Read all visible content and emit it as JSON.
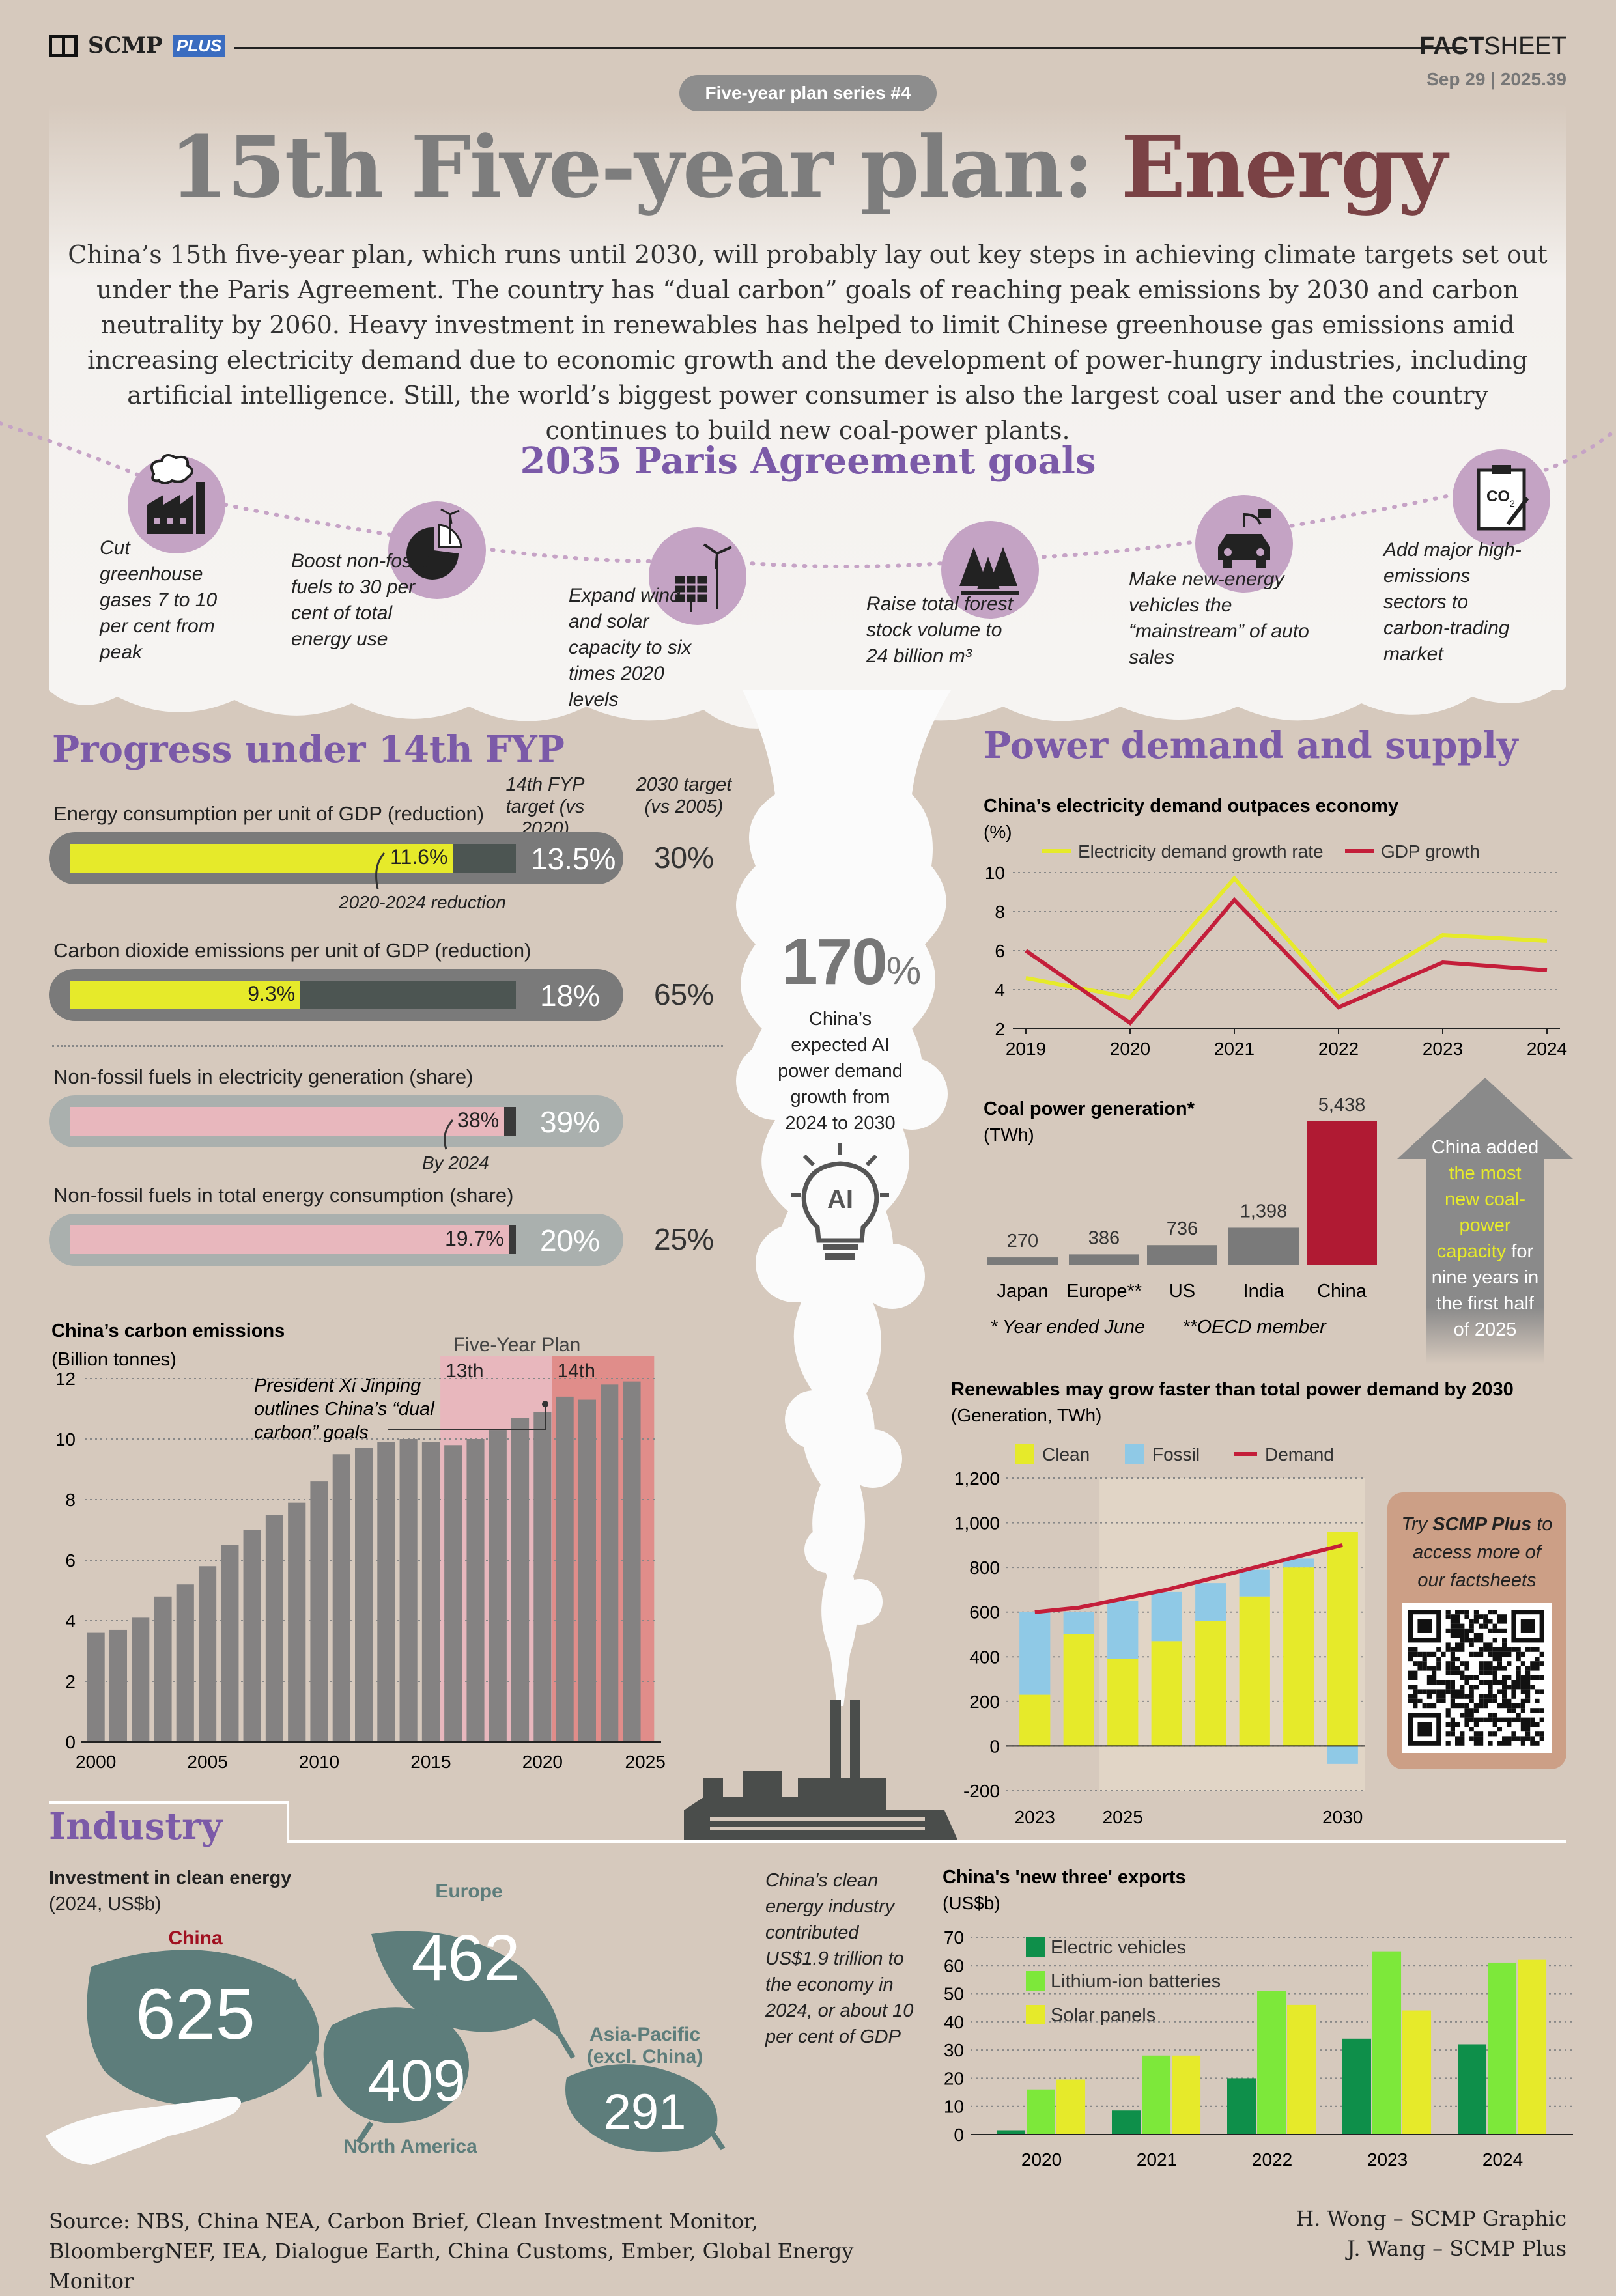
{
  "header": {
    "brand": "SCMP",
    "brand_plus": "PLUS",
    "factsheet_bold": "FACT",
    "factsheet_rest": "SHEET",
    "date": "Sep 29 | 2025.39",
    "series_badge": "Five-year plan series #4",
    "title_grey": "15th Five-year plan: ",
    "title_red": "Energy"
  },
  "intro": "China’s 15th five-year plan, which runs until 2030, will probably lay out key steps in achieving climate targets set out under the Paris Agreement. The country has “dual carbon” goals of reaching peak emissions by 2030 and carbon neutrality by 2060. Heavy investment in renewables has helped to limit Chinese greenhouse gas emissions amid increasing electricity demand due to economic growth and the development of power-hungry industries, including artificial intelligence. Still, the world’s biggest power consumer is also the largest coal user and the country continues to build new coal-power plants.",
  "goals": {
    "title": "2035 Paris Agreement goals",
    "items": [
      {
        "icon": "factory-icon",
        "text": "Cut greenhouse gases 7 to 10 per cent from peak"
      },
      {
        "icon": "pie-wind-icon",
        "text": "Boost non-fossil fuels to 30 per cent of total energy use"
      },
      {
        "icon": "solar-wind-icon",
        "text": "Expand wind and solar capacity to six times 2020 levels"
      },
      {
        "icon": "forest-icon",
        "text": "Raise total forest stock volume to 24 billion m³"
      },
      {
        "icon": "ev-car-icon",
        "text": "Make new-energy vehicles the “mainstream” of auto sales"
      },
      {
        "icon": "co2-clipboard-icon",
        "text": "Add major high-emissions sectors to carbon-trading market"
      }
    ]
  },
  "progress": {
    "title": "Progress under 14th FYP",
    "col1": "14th FYP target (vs 2020)",
    "col2": "2030 target (vs 2005)",
    "rows": [
      {
        "label": "Energy consumption per unit of GDP (reduction)",
        "value": "11.6%",
        "fill": 0.859,
        "target": "13.5%",
        "t2030": "30%"
      },
      {
        "label": "Carbon dioxide emissions per unit of GDP (reduction)",
        "value": "9.3%",
        "fill": 0.517,
        "target": "18%",
        "t2030": "65%"
      },
      {
        "label": "Non-fossil fuels in electricity generation (share)",
        "value": "38%",
        "fill": 0.974,
        "target": "39%",
        "t2030": ""
      },
      {
        "label": "Non-fossil fuels in total energy consumption (share)",
        "value": "19.7%",
        "fill": 0.985,
        "target": "20%",
        "t2030": "25%"
      }
    ],
    "note1": "2020-2024 reduction",
    "note2": "By 2024"
  },
  "ai": {
    "big": "170",
    "pct": "%",
    "text": "China’s expected AI power demand growth from 2024 to 2030",
    "icon_label": "AI"
  },
  "power": {
    "title": "Power demand and supply"
  },
  "industry": {
    "title": "Industry",
    "sub_title": "Investment in clean energy",
    "sub_unit": "(2024, US$b)",
    "leaves": [
      {
        "region": "China",
        "value": "625"
      },
      {
        "region": "Europe",
        "value": "462"
      },
      {
        "region": "North America",
        "value": "409"
      },
      {
        "region": "Asia-Pacific (excl. China)",
        "value": "291"
      }
    ],
    "note": "China's clean energy industry contributed US$1.9 trillion to the economy in 2024, or about 10 per cent of GDP"
  },
  "coal_callout": {
    "pre": "China added ",
    "hl": "the most new coal-power capacity",
    "post": " for nine years in the first half of 2025"
  },
  "promo": {
    "pre": "Try ",
    "bold": "SCMP Plus",
    "post": " to access more of our factsheets"
  },
  "footer": {
    "source": "Source: NBS, China NEA, Carbon Brief, Clean Investment Monitor, BloombergNEF, IEA, Dialogue Earth, China Customs, Ember, Global Energy Monitor",
    "credit1": "H. Wong – SCMP Graphic",
    "credit2": "J. Wang – SCMP Plus"
  },
  "colors": {
    "purple": "#7b5aa8",
    "red": "#c41e3a",
    "yellow": "#e6ea2a",
    "grey": "#808080",
    "teal": "#5d7d7b",
    "pink": "#e8b7bd"
  },
  "chart_data": [
    {
      "type": "bar",
      "title": "China’s carbon emissions",
      "ylabel": "(Billion tonnes)",
      "ylim": [
        0,
        12
      ],
      "x": [
        2000,
        2001,
        2002,
        2003,
        2004,
        2005,
        2006,
        2007,
        2008,
        2009,
        2010,
        2011,
        2012,
        2013,
        2014,
        2015,
        2016,
        2017,
        2018,
        2019,
        2020,
        2021,
        2022,
        2023,
        2024
      ],
      "values": [
        3.6,
        3.7,
        4.1,
        4.8,
        5.2,
        5.8,
        6.5,
        7.0,
        7.5,
        7.9,
        8.6,
        9.5,
        9.7,
        9.9,
        10.0,
        9.9,
        9.8,
        10.0,
        10.3,
        10.7,
        10.9,
        11.4,
        11.3,
        11.8,
        11.9
      ],
      "bands": [
        {
          "label": "13th",
          "from": 2016,
          "to": 2020
        },
        {
          "label": "14th",
          "from": 2021,
          "to": 2025
        }
      ],
      "band_title": "Five-Year Plan",
      "annotation": "President Xi Jinping outlines China’s “dual carbon” goals",
      "xticks": [
        2000,
        2005,
        2010,
        2015,
        2020,
        2025
      ],
      "yticks": [
        0,
        2,
        4,
        6,
        8,
        10,
        12
      ]
    },
    {
      "type": "line",
      "title": "China’s electricity demand outpaces economy",
      "ylabel": "(%)",
      "x": [
        "2019",
        "2020",
        "2021",
        "2022",
        "2023",
        "2024"
      ],
      "ylim": [
        2,
        10
      ],
      "series": [
        {
          "name": "Electricity demand growth rate",
          "values": [
            4.6,
            3.6,
            9.7,
            3.6,
            6.8,
            6.5
          ]
        },
        {
          "name": "GDP growth",
          "values": [
            6.0,
            2.3,
            8.6,
            3.1,
            5.4,
            5.0
          ]
        }
      ]
    },
    {
      "type": "bar",
      "title": "Coal power generation*",
      "ylabel": "(TWh)",
      "categories": [
        "Japan",
        "Europe**",
        "US",
        "India",
        "China"
      ],
      "values": [
        270,
        386,
        736,
        1398,
        5438
      ],
      "value_labels": [
        "270",
        "386",
        "736",
        "1,398",
        "5,438"
      ],
      "notes": [
        "* Year ended June",
        "**OECD member"
      ]
    },
    {
      "type": "bar",
      "title": "Renewables may grow faster than total power demand by 2030",
      "ylabel": "(Generation, TWh)",
      "x": [
        2023,
        2024,
        2025,
        2026,
        2027,
        2028,
        2029,
        2030
      ],
      "ylim": [
        -200,
        1200
      ],
      "yticks": [
        "1,200",
        "1,000",
        "800",
        "600",
        "400",
        "200",
        "0",
        "-200"
      ],
      "xticks": [
        "2023",
        "2025",
        "2030"
      ],
      "series": [
        {
          "name": "Clean",
          "values": [
            230,
            500,
            390,
            470,
            560,
            670,
            800,
            960
          ]
        },
        {
          "name": "Fossil",
          "values": [
            370,
            100,
            260,
            220,
            170,
            120,
            40,
            -80
          ]
        },
        {
          "name": "Demand",
          "values": [
            600,
            620,
            660,
            700,
            750,
            800,
            850,
            900
          ]
        }
      ]
    },
    {
      "type": "bar",
      "title": "China's 'new three' exports",
      "ylabel": "(US$b)",
      "x": [
        "2020",
        "2021",
        "2022",
        "2023",
        "2024"
      ],
      "ylim": [
        0,
        70
      ],
      "series": [
        {
          "name": "Electric vehicles",
          "values": [
            1.5,
            8.5,
            20,
            34,
            32
          ]
        },
        {
          "name": "Lithium-ion batteries",
          "values": [
            16,
            28,
            51,
            65,
            61
          ]
        },
        {
          "name": "Solar panels",
          "values": [
            19.5,
            28,
            46,
            44,
            62
          ]
        }
      ]
    }
  ]
}
